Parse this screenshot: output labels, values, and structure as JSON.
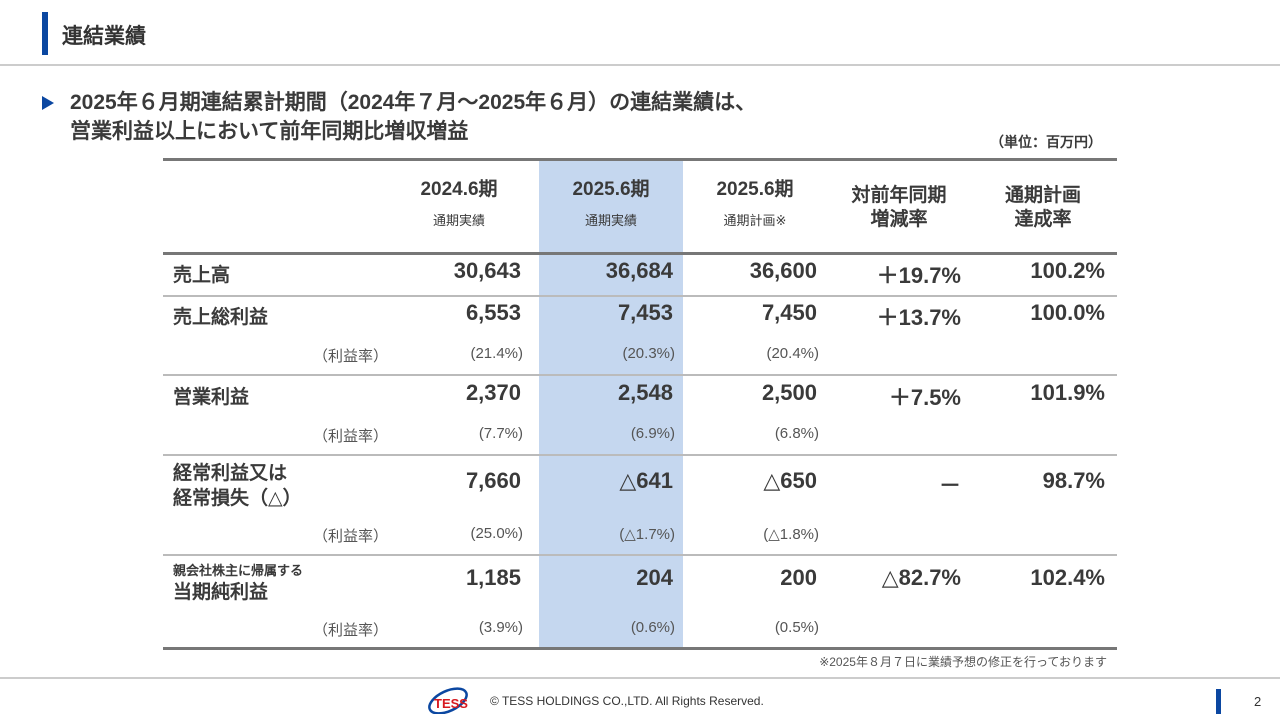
{
  "header": {
    "title": "連結業績"
  },
  "lead": {
    "line1": "2025年６月期連結累計期間（2024年７月～2025年６月）の連結業績は、",
    "line2": "営業利益以上において前年同期比増収増益"
  },
  "unit": "（単位：百万円）",
  "columns": [
    {
      "title": "2024.6期",
      "sub": "通期実績"
    },
    {
      "title": "2025.6期",
      "sub": "通期実績"
    },
    {
      "title": "2025.6期",
      "sub": "通期計画※"
    },
    {
      "title": "対前年同期",
      "sub": "増減率"
    },
    {
      "title": "通期計画",
      "sub": "達成率"
    }
  ],
  "rows": [
    {
      "label": "売上高",
      "values": [
        "30,643",
        "36,684",
        "36,600",
        "＋19.7%",
        "100.2%"
      ]
    },
    {
      "label": "売上総利益",
      "values": [
        "6,553",
        "7,453",
        "7,450",
        "＋13.7%",
        "100.0%"
      ],
      "ratio_label": "（利益率）",
      "ratios": [
        "(21.4%)",
        "(20.3%)",
        "(20.4%)"
      ]
    },
    {
      "label": "営業利益",
      "values": [
        "2,370",
        "2,548",
        "2,500",
        "＋7.5%",
        "101.9%"
      ],
      "ratio_label": "（利益率）",
      "ratios": [
        "(7.7%)",
        "(6.9%)",
        "(6.8%)"
      ]
    },
    {
      "label": "経常利益又は",
      "label2": "経常損失（△）",
      "values": [
        "7,660",
        "△641",
        "△650",
        "－",
        "98.7%"
      ],
      "ratio_label": "（利益率）",
      "ratios": [
        "(25.0%)",
        "(△1.7%)",
        "(△1.8%)"
      ]
    },
    {
      "label_small": "親会社株主に帰属する",
      "label": "当期純利益",
      "values": [
        "1,185",
        "204",
        "200",
        "△82.7%",
        "102.4%"
      ],
      "ratio_label": "（利益率）",
      "ratios": [
        "(3.9%)",
        "(0.6%)",
        "(0.5%)"
      ]
    }
  ],
  "footnote": "※2025年８月７日に業績予想の修正を行っております",
  "footer": {
    "logo": "TESS",
    "copyright": "© TESS HOLDINGS CO.,LTD. All Rights Reserved.",
    "page": "2"
  },
  "colors": {
    "accent": "#0b47a1",
    "highlight": "#c5d7ef"
  }
}
